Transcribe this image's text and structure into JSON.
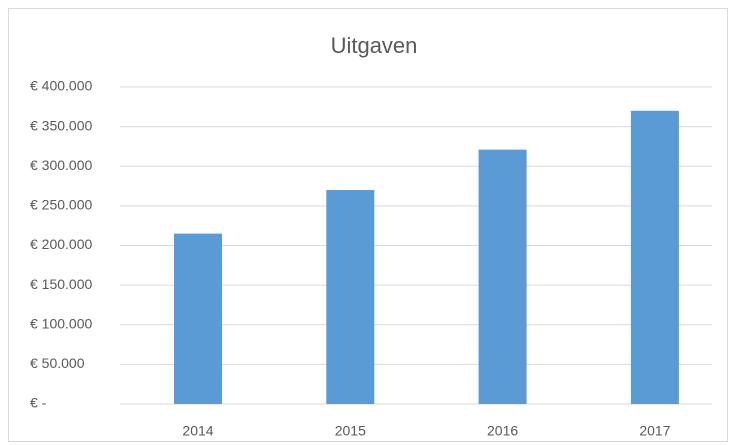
{
  "chart_data": {
    "type": "bar",
    "title": "Uitgaven",
    "categories": [
      "2014",
      "2015",
      "2016",
      "2017"
    ],
    "values": [
      215000,
      270000,
      321000,
      370000
    ],
    "color": "#5b9bd5",
    "ylim": [
      0,
      400000
    ],
    "yticks": [
      {
        "value": 0,
        "label": "€ -"
      },
      {
        "value": 50000,
        "label": "€ 50.000"
      },
      {
        "value": 100000,
        "label": "€ 100.000"
      },
      {
        "value": 150000,
        "label": "€ 150.000"
      },
      {
        "value": 200000,
        "label": "€ 200.000"
      },
      {
        "value": 250000,
        "label": "€ 250.000"
      },
      {
        "value": 300000,
        "label": "€ 300.000"
      },
      {
        "value": 350000,
        "label": "€ 350.000"
      },
      {
        "value": 400000,
        "label": "€ 400.000"
      }
    ],
    "grid": true
  }
}
